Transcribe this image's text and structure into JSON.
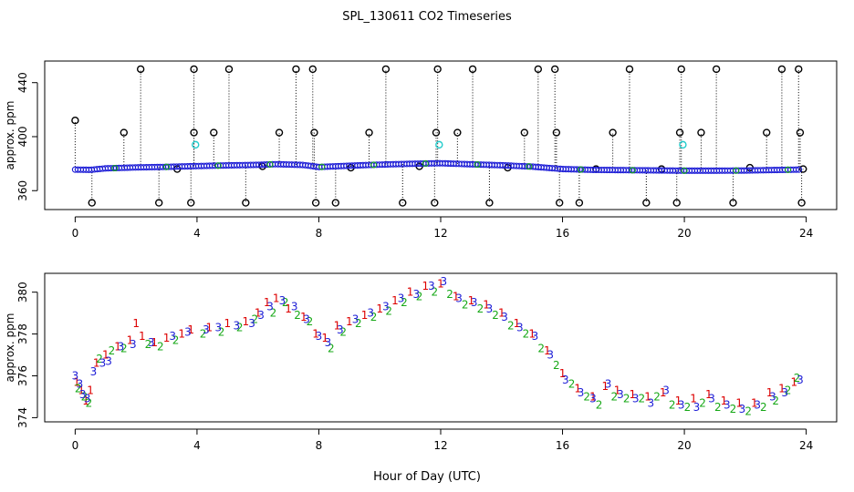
{
  "figure": {
    "title": "SPL_130611  CO2 Timeseries",
    "xlabel": "Hour of Day (UTC)"
  },
  "chart_data": [
    {
      "type": "scatter",
      "ylabel": "approx. ppm",
      "xlim": [
        -1,
        25
      ],
      "ylim": [
        346,
        456
      ],
      "xticks": [
        0,
        4,
        8,
        12,
        16,
        20,
        24
      ],
      "yticks": [
        360,
        400,
        440
      ],
      "grid": false,
      "baseline_series": [
        {
          "x": 0,
          "y": 375.6
        },
        {
          "x": 0.5,
          "y": 375.4
        },
        {
          "x": 1,
          "y": 376.5
        },
        {
          "x": 2,
          "y": 377.2
        },
        {
          "x": 3,
          "y": 377.6
        },
        {
          "x": 4,
          "y": 378.2
        },
        {
          "x": 5,
          "y": 378.7
        },
        {
          "x": 6,
          "y": 379.1
        },
        {
          "x": 6.6,
          "y": 379.6
        },
        {
          "x": 7.5,
          "y": 379.0
        },
        {
          "x": 8,
          "y": 377.5
        },
        {
          "x": 8.5,
          "y": 378.0
        },
        {
          "x": 9.5,
          "y": 378.9
        },
        {
          "x": 10.5,
          "y": 379.6
        },
        {
          "x": 11.5,
          "y": 380.1
        },
        {
          "x": 12,
          "y": 380.3
        },
        {
          "x": 13,
          "y": 379.5
        },
        {
          "x": 14,
          "y": 378.8
        },
        {
          "x": 15,
          "y": 377.8
        },
        {
          "x": 16,
          "y": 376.0
        },
        {
          "x": 17,
          "y": 375.4
        },
        {
          "x": 18,
          "y": 375.2
        },
        {
          "x": 19,
          "y": 375.0
        },
        {
          "x": 20,
          "y": 374.8
        },
        {
          "x": 21,
          "y": 374.8
        },
        {
          "x": 22,
          "y": 374.9
        },
        {
          "x": 23,
          "y": 375.3
        },
        {
          "x": 23.8,
          "y": 375.6
        }
      ],
      "spikes": [
        {
          "x": 0.0,
          "y": 412
        },
        {
          "x": 0.55,
          "y": 351
        },
        {
          "x": 1.6,
          "y": 403
        },
        {
          "x": 2.15,
          "y": 450
        },
        {
          "x": 2.75,
          "y": 351
        },
        {
          "x": 3.35,
          "y": 376
        },
        {
          "x": 3.8,
          "y": 351
        },
        {
          "x": 3.9,
          "y": 403
        },
        {
          "x": 3.9,
          "y": 450
        },
        {
          "x": 4.55,
          "y": 403
        },
        {
          "x": 5.05,
          "y": 450
        },
        {
          "x": 5.6,
          "y": 351
        },
        {
          "x": 6.15,
          "y": 378
        },
        {
          "x": 6.7,
          "y": 403
        },
        {
          "x": 7.25,
          "y": 450
        },
        {
          "x": 7.8,
          "y": 450
        },
        {
          "x": 7.85,
          "y": 403
        },
        {
          "x": 7.9,
          "y": 351
        },
        {
          "x": 8.55,
          "y": 351
        },
        {
          "x": 9.05,
          "y": 377
        },
        {
          "x": 9.65,
          "y": 403
        },
        {
          "x": 10.2,
          "y": 450
        },
        {
          "x": 10.75,
          "y": 351
        },
        {
          "x": 11.3,
          "y": 378
        },
        {
          "x": 11.8,
          "y": 351
        },
        {
          "x": 11.85,
          "y": 403
        },
        {
          "x": 11.9,
          "y": 450
        },
        {
          "x": 12.55,
          "y": 403
        },
        {
          "x": 13.05,
          "y": 450
        },
        {
          "x": 13.6,
          "y": 351
        },
        {
          "x": 14.2,
          "y": 377
        },
        {
          "x": 14.75,
          "y": 403
        },
        {
          "x": 15.2,
          "y": 450
        },
        {
          "x": 15.75,
          "y": 450
        },
        {
          "x": 15.8,
          "y": 403
        },
        {
          "x": 15.9,
          "y": 351
        },
        {
          "x": 16.55,
          "y": 351
        },
        {
          "x": 17.1,
          "y": 376
        },
        {
          "x": 17.65,
          "y": 403
        },
        {
          "x": 18.2,
          "y": 450
        },
        {
          "x": 18.75,
          "y": 351
        },
        {
          "x": 19.25,
          "y": 376
        },
        {
          "x": 19.75,
          "y": 351
        },
        {
          "x": 19.85,
          "y": 403
        },
        {
          "x": 19.9,
          "y": 450
        },
        {
          "x": 20.55,
          "y": 403
        },
        {
          "x": 21.05,
          "y": 450
        },
        {
          "x": 21.6,
          "y": 351
        },
        {
          "x": 22.15,
          "y": 377
        },
        {
          "x": 22.7,
          "y": 403
        },
        {
          "x": 23.2,
          "y": 450
        },
        {
          "x": 23.75,
          "y": 450
        },
        {
          "x": 23.8,
          "y": 403
        },
        {
          "x": 23.85,
          "y": 351
        },
        {
          "x": 23.9,
          "y": 376
        }
      ],
      "cyan_points": [
        {
          "x": 3.95,
          "y": 394
        },
        {
          "x": 11.95,
          "y": 394
        },
        {
          "x": 19.95,
          "y": 394
        }
      ],
      "colors": {
        "points": "#1c1cd6",
        "spike_markers": "#000000",
        "cyan": "#22cccc",
        "accent_green": "#17a817"
      }
    },
    {
      "type": "scatter",
      "ylabel": "approx. ppm",
      "xlim": [
        -1,
        25
      ],
      "ylim": [
        373.8,
        380.9
      ],
      "xticks": [
        0,
        4,
        8,
        12,
        16,
        20,
        24
      ],
      "yticks": [
        374,
        376,
        378,
        380
      ],
      "grid": false,
      "marker_glyphs": [
        "1",
        "2",
        "3"
      ],
      "series_colors": {
        "1": "#dd0000",
        "2": "#17a817",
        "3": "#1c1cd6"
      },
      "series": [
        {
          "values": [
            {
              "x": 0.05,
              "y": 375.7
            },
            {
              "x": 0.2,
              "y": 375.3
            },
            {
              "x": 0.35,
              "y": 374.8
            },
            {
              "x": 0.5,
              "y": 375.3
            },
            {
              "x": 0.7,
              "y": 376.6
            },
            {
              "x": 1.0,
              "y": 377.0
            },
            {
              "x": 1.4,
              "y": 377.4
            },
            {
              "x": 1.8,
              "y": 377.7
            },
            {
              "x": 2.0,
              "y": 378.5
            },
            {
              "x": 2.2,
              "y": 377.9
            },
            {
              "x": 2.6,
              "y": 377.6
            },
            {
              "x": 3.0,
              "y": 377.8
            },
            {
              "x": 3.5,
              "y": 378.0
            },
            {
              "x": 3.8,
              "y": 378.2
            },
            {
              "x": 4.4,
              "y": 378.3
            },
            {
              "x": 5.0,
              "y": 378.5
            },
            {
              "x": 5.6,
              "y": 378.6
            },
            {
              "x": 6.0,
              "y": 379.0
            },
            {
              "x": 6.3,
              "y": 379.5
            },
            {
              "x": 6.6,
              "y": 379.7
            },
            {
              "x": 7.0,
              "y": 379.2
            },
            {
              "x": 7.5,
              "y": 378.8
            },
            {
              "x": 7.9,
              "y": 378.0
            },
            {
              "x": 8.2,
              "y": 377.8
            },
            {
              "x": 8.6,
              "y": 378.4
            },
            {
              "x": 9.0,
              "y": 378.6
            },
            {
              "x": 9.5,
              "y": 378.9
            },
            {
              "x": 10.0,
              "y": 379.2
            },
            {
              "x": 10.5,
              "y": 379.6
            },
            {
              "x": 11.0,
              "y": 380.0
            },
            {
              "x": 11.5,
              "y": 380.3
            },
            {
              "x": 12.0,
              "y": 380.4
            },
            {
              "x": 12.5,
              "y": 379.8
            },
            {
              "x": 13.0,
              "y": 379.6
            },
            {
              "x": 13.5,
              "y": 379.4
            },
            {
              "x": 14.0,
              "y": 379.0
            },
            {
              "x": 14.5,
              "y": 378.5
            },
            {
              "x": 15.0,
              "y": 378.0
            },
            {
              "x": 15.5,
              "y": 377.2
            },
            {
              "x": 16.0,
              "y": 376.1
            },
            {
              "x": 16.5,
              "y": 375.4
            },
            {
              "x": 17.0,
              "y": 375.0
            },
            {
              "x": 17.4,
              "y": 375.5
            },
            {
              "x": 17.8,
              "y": 375.3
            },
            {
              "x": 18.3,
              "y": 375.1
            },
            {
              "x": 18.8,
              "y": 375.0
            },
            {
              "x": 19.3,
              "y": 375.2
            },
            {
              "x": 19.8,
              "y": 374.8
            },
            {
              "x": 20.3,
              "y": 374.9
            },
            {
              "x": 20.8,
              "y": 375.1
            },
            {
              "x": 21.3,
              "y": 374.8
            },
            {
              "x": 21.8,
              "y": 374.7
            },
            {
              "x": 22.3,
              "y": 374.7
            },
            {
              "x": 22.8,
              "y": 375.2
            },
            {
              "x": 23.2,
              "y": 375.4
            },
            {
              "x": 23.6,
              "y": 375.7
            }
          ]
        },
        {
          "values": [
            {
              "x": 0.1,
              "y": 375.4
            },
            {
              "x": 0.3,
              "y": 375.0
            },
            {
              "x": 0.45,
              "y": 374.7
            },
            {
              "x": 0.8,
              "y": 376.8
            },
            {
              "x": 1.2,
              "y": 377.2
            },
            {
              "x": 1.6,
              "y": 377.3
            },
            {
              "x": 2.4,
              "y": 377.5
            },
            {
              "x": 2.8,
              "y": 377.4
            },
            {
              "x": 3.3,
              "y": 377.7
            },
            {
              "x": 4.2,
              "y": 378.0
            },
            {
              "x": 4.8,
              "y": 378.1
            },
            {
              "x": 5.4,
              "y": 378.3
            },
            {
              "x": 5.9,
              "y": 378.7
            },
            {
              "x": 6.5,
              "y": 379.0
            },
            {
              "x": 6.9,
              "y": 379.5
            },
            {
              "x": 7.3,
              "y": 378.9
            },
            {
              "x": 7.7,
              "y": 378.6
            },
            {
              "x": 8.4,
              "y": 377.3
            },
            {
              "x": 8.8,
              "y": 378.1
            },
            {
              "x": 9.3,
              "y": 378.5
            },
            {
              "x": 9.8,
              "y": 378.8
            },
            {
              "x": 10.3,
              "y": 379.1
            },
            {
              "x": 10.8,
              "y": 379.5
            },
            {
              "x": 11.3,
              "y": 379.8
            },
            {
              "x": 11.8,
              "y": 380.0
            },
            {
              "x": 12.3,
              "y": 379.9
            },
            {
              "x": 12.8,
              "y": 379.4
            },
            {
              "x": 13.3,
              "y": 379.2
            },
            {
              "x": 13.8,
              "y": 378.9
            },
            {
              "x": 14.3,
              "y": 378.4
            },
            {
              "x": 14.8,
              "y": 378.0
            },
            {
              "x": 15.3,
              "y": 377.3
            },
            {
              "x": 15.8,
              "y": 376.5
            },
            {
              "x": 16.3,
              "y": 375.6
            },
            {
              "x": 16.8,
              "y": 375.0
            },
            {
              "x": 17.2,
              "y": 374.6
            },
            {
              "x": 17.7,
              "y": 375.0
            },
            {
              "x": 18.1,
              "y": 374.9
            },
            {
              "x": 18.6,
              "y": 374.9
            },
            {
              "x": 19.1,
              "y": 375.0
            },
            {
              "x": 19.6,
              "y": 374.6
            },
            {
              "x": 20.1,
              "y": 374.5
            },
            {
              "x": 20.6,
              "y": 374.7
            },
            {
              "x": 21.1,
              "y": 374.5
            },
            {
              "x": 21.6,
              "y": 374.4
            },
            {
              "x": 22.1,
              "y": 374.3
            },
            {
              "x": 22.6,
              "y": 374.5
            },
            {
              "x": 23.0,
              "y": 374.8
            },
            {
              "x": 23.4,
              "y": 375.3
            },
            {
              "x": 23.7,
              "y": 375.9
            }
          ]
        },
        {
          "values": [
            {
              "x": 0.0,
              "y": 376.0
            },
            {
              "x": 0.15,
              "y": 375.6
            },
            {
              "x": 0.25,
              "y": 375.1
            },
            {
              "x": 0.4,
              "y": 374.9
            },
            {
              "x": 0.6,
              "y": 376.2
            },
            {
              "x": 0.9,
              "y": 376.6
            },
            {
              "x": 1.1,
              "y": 376.7
            },
            {
              "x": 1.5,
              "y": 377.4
            },
            {
              "x": 1.9,
              "y": 377.5
            },
            {
              "x": 2.5,
              "y": 377.6
            },
            {
              "x": 3.2,
              "y": 377.9
            },
            {
              "x": 3.7,
              "y": 378.1
            },
            {
              "x": 4.3,
              "y": 378.2
            },
            {
              "x": 4.7,
              "y": 378.3
            },
            {
              "x": 5.3,
              "y": 378.4
            },
            {
              "x": 5.8,
              "y": 378.5
            },
            {
              "x": 6.1,
              "y": 378.9
            },
            {
              "x": 6.4,
              "y": 379.3
            },
            {
              "x": 6.8,
              "y": 379.6
            },
            {
              "x": 7.2,
              "y": 379.3
            },
            {
              "x": 7.6,
              "y": 378.7
            },
            {
              "x": 8.0,
              "y": 377.9
            },
            {
              "x": 8.3,
              "y": 377.6
            },
            {
              "x": 8.7,
              "y": 378.2
            },
            {
              "x": 9.2,
              "y": 378.7
            },
            {
              "x": 9.7,
              "y": 379.0
            },
            {
              "x": 10.2,
              "y": 379.3
            },
            {
              "x": 10.7,
              "y": 379.7
            },
            {
              "x": 11.2,
              "y": 379.9
            },
            {
              "x": 11.7,
              "y": 380.3
            },
            {
              "x": 12.1,
              "y": 380.5
            },
            {
              "x": 12.6,
              "y": 379.7
            },
            {
              "x": 13.1,
              "y": 379.5
            },
            {
              "x": 13.6,
              "y": 379.2
            },
            {
              "x": 14.1,
              "y": 378.8
            },
            {
              "x": 14.6,
              "y": 378.3
            },
            {
              "x": 15.1,
              "y": 377.9
            },
            {
              "x": 15.6,
              "y": 377.0
            },
            {
              "x": 16.1,
              "y": 375.8
            },
            {
              "x": 16.6,
              "y": 375.2
            },
            {
              "x": 17.0,
              "y": 374.9
            },
            {
              "x": 17.5,
              "y": 375.6
            },
            {
              "x": 17.9,
              "y": 375.1
            },
            {
              "x": 18.4,
              "y": 374.9
            },
            {
              "x": 18.9,
              "y": 374.7
            },
            {
              "x": 19.4,
              "y": 375.3
            },
            {
              "x": 19.9,
              "y": 374.6
            },
            {
              "x": 20.4,
              "y": 374.5
            },
            {
              "x": 20.9,
              "y": 374.9
            },
            {
              "x": 21.4,
              "y": 374.6
            },
            {
              "x": 21.9,
              "y": 374.4
            },
            {
              "x": 22.4,
              "y": 374.6
            },
            {
              "x": 22.9,
              "y": 375.0
            },
            {
              "x": 23.3,
              "y": 375.2
            },
            {
              "x": 23.8,
              "y": 375.8
            }
          ]
        }
      ]
    }
  ]
}
